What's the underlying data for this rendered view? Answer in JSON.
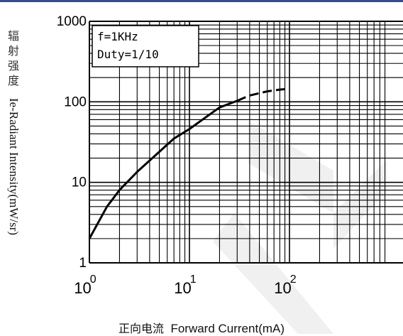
{
  "chart_data": {
    "type": "line",
    "title": "",
    "xlabel_cn": "正向电流",
    "xlabel": "Forward Current(mA)",
    "ylabel_cn": "辐射强度",
    "ylabel": "Ie-Radiant Intensity(mW/sr)",
    "x_scale": "log",
    "y_scale": "log",
    "xlim": [
      1,
      500
    ],
    "ylim": [
      1,
      1000
    ],
    "y_ticks": [
      {
        "value": 1,
        "label": "1"
      },
      {
        "value": 10,
        "label": "10"
      },
      {
        "value": 100,
        "label": "100"
      },
      {
        "value": 1000,
        "label": "1000"
      }
    ],
    "x_ticks": [
      {
        "value": 1,
        "base": "10",
        "exp": "0"
      },
      {
        "value": 10,
        "base": "10",
        "exp": "1"
      },
      {
        "value": 100,
        "base": "10",
        "exp": "2"
      }
    ],
    "grid": true,
    "annotations": [
      "f=1KHz",
      "Duty=1/10"
    ],
    "series": [
      {
        "style": "solid",
        "color": "#000000",
        "points": [
          [
            1,
            2
          ],
          [
            1.5,
            5
          ],
          [
            2,
            8
          ],
          [
            3,
            13.5
          ],
          [
            5,
            24
          ],
          [
            7,
            35
          ],
          [
            10,
            46
          ],
          [
            15,
            66
          ],
          [
            20,
            85
          ],
          [
            30,
            103
          ]
        ]
      },
      {
        "style": "dashed",
        "color": "#000000",
        "points": [
          [
            30,
            103
          ],
          [
            40,
            120
          ],
          [
            60,
            135
          ],
          [
            80,
            142
          ],
          [
            100,
            145
          ]
        ]
      }
    ]
  }
}
